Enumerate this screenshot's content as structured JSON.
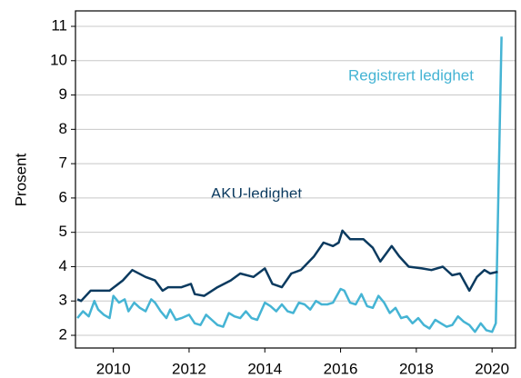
{
  "chart_data": {
    "type": "line",
    "y_label": "Prosent",
    "annotations": [
      "Registrert ledighet",
      "AKU-ledighet"
    ],
    "xlim": [
      2009,
      2020.62
    ],
    "xticks": [
      2010,
      2012,
      2014,
      2016,
      2018,
      2020
    ],
    "ylim": [
      1.63,
      11.45
    ],
    "yticks": [
      2,
      3,
      4,
      5,
      6,
      7,
      8,
      9,
      10,
      11
    ],
    "grid": true,
    "series": [
      {
        "name": "Registrert ledighet",
        "color": "#45b4d4",
        "x": [
          2009.05,
          2009.2,
          2009.35,
          2009.5,
          2009.6,
          2009.75,
          2009.9,
          2010.0,
          2010.15,
          2010.3,
          2010.4,
          2010.55,
          2010.7,
          2010.85,
          2011.0,
          2011.1,
          2011.25,
          2011.4,
          2011.5,
          2011.65,
          2011.8,
          2012.0,
          2012.15,
          2012.3,
          2012.45,
          2012.6,
          2012.75,
          2012.9,
          2013.05,
          2013.2,
          2013.35,
          2013.5,
          2013.65,
          2013.8,
          2014.0,
          2014.15,
          2014.3,
          2014.45,
          2014.6,
          2014.75,
          2014.9,
          2015.05,
          2015.2,
          2015.35,
          2015.5,
          2015.65,
          2015.8,
          2016.0,
          2016.1,
          2016.25,
          2016.4,
          2016.55,
          2016.7,
          2016.85,
          2017.0,
          2017.15,
          2017.3,
          2017.45,
          2017.6,
          2017.75,
          2017.9,
          2018.05,
          2018.2,
          2018.35,
          2018.5,
          2018.65,
          2018.8,
          2018.95,
          2019.1,
          2019.25,
          2019.4,
          2019.55,
          2019.7,
          2019.85,
          2020.0,
          2020.1,
          2020.25
        ],
        "values": [
          2.5,
          2.7,
          2.55,
          3.0,
          2.75,
          2.6,
          2.5,
          3.15,
          2.95,
          3.05,
          2.7,
          2.95,
          2.8,
          2.7,
          3.05,
          2.95,
          2.7,
          2.5,
          2.75,
          2.45,
          2.5,
          2.6,
          2.35,
          2.3,
          2.6,
          2.45,
          2.3,
          2.25,
          2.65,
          2.55,
          2.5,
          2.7,
          2.5,
          2.45,
          2.95,
          2.85,
          2.7,
          2.9,
          2.7,
          2.65,
          2.95,
          2.9,
          2.75,
          3.0,
          2.9,
          2.9,
          2.95,
          3.35,
          3.3,
          2.95,
          2.9,
          3.2,
          2.85,
          2.8,
          3.15,
          2.95,
          2.65,
          2.8,
          2.5,
          2.55,
          2.35,
          2.5,
          2.3,
          2.2,
          2.45,
          2.35,
          2.25,
          2.3,
          2.55,
          2.4,
          2.3,
          2.1,
          2.35,
          2.15,
          2.1,
          2.35,
          10.7
        ]
      },
      {
        "name": "AKU-ledighet",
        "color": "#0b3a5f",
        "x": [
          2009.05,
          2009.15,
          2009.4,
          2009.9,
          2010.25,
          2010.5,
          2010.85,
          2011.1,
          2011.3,
          2011.45,
          2011.8,
          2012.05,
          2012.15,
          2012.4,
          2012.75,
          2013.1,
          2013.35,
          2013.7,
          2014.0,
          2014.2,
          2014.45,
          2014.7,
          2014.95,
          2015.3,
          2015.55,
          2015.8,
          2015.95,
          2016.05,
          2016.25,
          2016.6,
          2016.85,
          2017.05,
          2017.35,
          2017.55,
          2017.8,
          2018.15,
          2018.4,
          2018.7,
          2018.95,
          2019.15,
          2019.4,
          2019.6,
          2019.8,
          2019.95,
          2020.15
        ],
        "values": [
          3.05,
          3.0,
          3.3,
          3.3,
          3.6,
          3.9,
          3.7,
          3.6,
          3.3,
          3.4,
          3.4,
          3.5,
          3.2,
          3.15,
          3.4,
          3.6,
          3.8,
          3.7,
          3.95,
          3.5,
          3.4,
          3.8,
          3.9,
          4.3,
          4.7,
          4.6,
          4.7,
          5.05,
          4.8,
          4.8,
          4.55,
          4.15,
          4.6,
          4.3,
          4.0,
          3.95,
          3.9,
          4.0,
          3.75,
          3.8,
          3.3,
          3.7,
          3.9,
          3.8,
          3.85
        ]
      }
    ]
  }
}
